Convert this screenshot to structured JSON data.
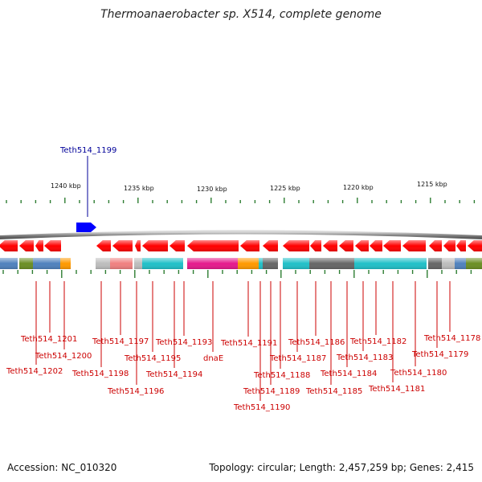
{
  "title": "Thermoanaerobacter sp. X514, complete genome",
  "footer": {
    "accession": "Accession: NC_010320",
    "summary": "Topology: circular; Length: 2,457,259 bp; Genes: 2,415"
  },
  "colors": {
    "gene_red": "#ff0000",
    "forward_blue": "#0000ff",
    "label_red": "#cc0000",
    "label_blue": "#000099",
    "tick_green": "#2e7d32",
    "backbone": "#8c8c8c"
  },
  "scale_ticks": [
    {
      "label": "1240 kbp"
    },
    {
      "label": "1235 kbp"
    },
    {
      "label": "1230 kbp"
    },
    {
      "label": "1225 kbp"
    },
    {
      "label": "1220 kbp"
    },
    {
      "label": "1215 kbp"
    }
  ],
  "forward_genes": [
    {
      "label": "Teth514_1199",
      "color": "#0000ff"
    }
  ],
  "reverse_genes": [
    {
      "label": "Teth514_1202",
      "cog": "#4f81bd"
    },
    {
      "label": "Teth514_1201",
      "cog": "#6b8e23"
    },
    {
      "label": "Teth514_1200",
      "cog": "#ff9900"
    },
    {
      "label": "Teth514_1198",
      "cog": "#bdbdbd"
    },
    {
      "label": "Teth514_1197",
      "cog": "#f08080"
    },
    {
      "label": "Teth514_1196",
      "cog": "#bdbdbd"
    },
    {
      "label": "Teth514_1195",
      "cog": "#20c0c8"
    },
    {
      "label": "Teth514_1194",
      "cog": "#20c0c8"
    },
    {
      "label": "Teth514_1193",
      "cog": "#20c0c8"
    },
    {
      "label": "dnaE",
      "cog": "#e6198c"
    },
    {
      "label": "Teth514_1191",
      "cog": "#ff9900"
    },
    {
      "label": "Teth514_1190",
      "cog": "#20c0c8"
    },
    {
      "label": "Teth514_1189",
      "cog": "#666666"
    },
    {
      "label": "Teth514_1188",
      "cog": "#666666"
    },
    {
      "label": "Teth514_1187",
      "cog": "#20c0c8"
    },
    {
      "label": "Teth514_1186",
      "cog": "#666666"
    },
    {
      "label": "Teth514_1185",
      "cog": "#666666"
    },
    {
      "label": "Teth514_1184",
      "cog": "#666666"
    },
    {
      "label": "Teth514_1183",
      "cog": "#20c0c8"
    },
    {
      "label": "Teth514_1182",
      "cog": "#20c0c8"
    },
    {
      "label": "Teth514_1181",
      "cog": "#20c0c8"
    },
    {
      "label": "Teth514_1180",
      "cog": "#20c0c8"
    },
    {
      "label": "Teth514_1179",
      "cog": "#666666"
    },
    {
      "label": "Teth514_1178",
      "cog": "#6b8e23"
    }
  ]
}
